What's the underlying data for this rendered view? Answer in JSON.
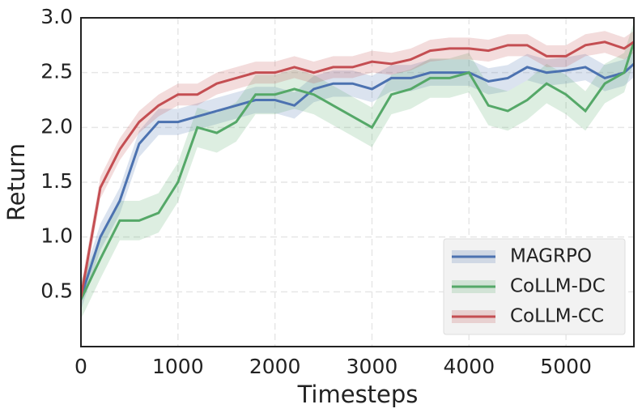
{
  "chart_data": {
    "type": "line",
    "x_label": "Timesteps",
    "y_label": "Return",
    "x": [
      0,
      200,
      400,
      600,
      800,
      1000,
      1200,
      1400,
      1600,
      1800,
      2000,
      2200,
      2400,
      2600,
      2800,
      3000,
      3200,
      3400,
      3600,
      3800,
      4000,
      4200,
      4400,
      4600,
      4800,
      5000,
      5200,
      5400,
      5600,
      5700
    ],
    "series": [
      {
        "name": "MAGRPO",
        "color": "#4c72b0",
        "values": [
          0.45,
          1.0,
          1.33,
          1.85,
          2.05,
          2.05,
          2.1,
          2.15,
          2.2,
          2.25,
          2.25,
          2.2,
          2.35,
          2.4,
          2.4,
          2.35,
          2.45,
          2.45,
          2.5,
          2.5,
          2.5,
          2.42,
          2.45,
          2.55,
          2.5,
          2.52,
          2.55,
          2.45,
          2.5,
          2.58
        ],
        "lower": [
          0.33,
          0.88,
          1.21,
          1.73,
          1.93,
          1.93,
          1.98,
          2.03,
          2.08,
          2.13,
          2.13,
          2.08,
          2.23,
          2.28,
          2.28,
          2.23,
          2.33,
          2.33,
          2.38,
          2.38,
          2.38,
          2.3,
          2.33,
          2.43,
          2.38,
          2.4,
          2.43,
          2.33,
          2.38,
          2.46
        ],
        "upper": [
          0.57,
          1.12,
          1.45,
          1.97,
          2.17,
          2.17,
          2.22,
          2.27,
          2.32,
          2.37,
          2.37,
          2.32,
          2.47,
          2.52,
          2.52,
          2.47,
          2.57,
          2.57,
          2.62,
          2.62,
          2.62,
          2.54,
          2.57,
          2.67,
          2.62,
          2.64,
          2.67,
          2.57,
          2.62,
          2.7
        ]
      },
      {
        "name": "CoLLM-DC",
        "color": "#55a868",
        "values": [
          0.43,
          0.8,
          1.15,
          1.15,
          1.22,
          1.5,
          2.0,
          1.95,
          2.05,
          2.3,
          2.3,
          2.35,
          2.3,
          2.2,
          2.1,
          2.0,
          2.3,
          2.35,
          2.45,
          2.45,
          2.5,
          2.2,
          2.15,
          2.25,
          2.4,
          2.3,
          2.15,
          2.4,
          2.5,
          2.78
        ],
        "lower": [
          0.25,
          0.62,
          0.97,
          0.97,
          1.04,
          1.32,
          1.82,
          1.77,
          1.87,
          2.12,
          2.12,
          2.17,
          2.12,
          2.02,
          1.92,
          1.82,
          2.12,
          2.17,
          2.27,
          2.27,
          2.32,
          2.02,
          1.97,
          2.07,
          2.22,
          2.12,
          1.97,
          2.22,
          2.32,
          2.6
        ],
        "upper": [
          0.61,
          0.98,
          1.33,
          1.33,
          1.4,
          1.68,
          2.18,
          2.13,
          2.23,
          2.48,
          2.48,
          2.53,
          2.48,
          2.38,
          2.28,
          2.18,
          2.48,
          2.53,
          2.63,
          2.63,
          2.68,
          2.38,
          2.33,
          2.43,
          2.58,
          2.48,
          2.33,
          2.58,
          2.68,
          2.96
        ]
      },
      {
        "name": "CoLLM-CC",
        "color": "#c44e52",
        "values": [
          0.45,
          1.45,
          1.8,
          2.05,
          2.2,
          2.3,
          2.3,
          2.4,
          2.45,
          2.5,
          2.5,
          2.55,
          2.5,
          2.55,
          2.55,
          2.6,
          2.58,
          2.62,
          2.7,
          2.72,
          2.72,
          2.7,
          2.75,
          2.75,
          2.65,
          2.65,
          2.75,
          2.78,
          2.72,
          2.78
        ],
        "lower": [
          0.35,
          1.35,
          1.7,
          1.95,
          2.1,
          2.2,
          2.2,
          2.3,
          2.35,
          2.4,
          2.4,
          2.45,
          2.4,
          2.45,
          2.45,
          2.5,
          2.48,
          2.52,
          2.6,
          2.62,
          2.62,
          2.6,
          2.65,
          2.65,
          2.55,
          2.55,
          2.65,
          2.68,
          2.62,
          2.68
        ],
        "upper": [
          0.55,
          1.55,
          1.9,
          2.15,
          2.3,
          2.4,
          2.4,
          2.5,
          2.55,
          2.6,
          2.6,
          2.65,
          2.6,
          2.65,
          2.65,
          2.7,
          2.68,
          2.72,
          2.8,
          2.82,
          2.82,
          2.8,
          2.85,
          2.85,
          2.75,
          2.75,
          2.85,
          2.88,
          2.82,
          2.88
        ]
      }
    ],
    "xlim": [
      0,
      5700
    ],
    "xticks": [
      0,
      1000,
      2000,
      3000,
      4000,
      5000
    ],
    "ylim": [
      0,
      3.0
    ],
    "yticks": [
      0.5,
      {
        "value": 1,
        "label": "1.0"
      },
      1.5,
      {
        "value": 2,
        "label": "2.0"
      },
      2.5,
      {
        "value": 3,
        "label": "3.0"
      }
    ],
    "grid": true,
    "legend": "lower right"
  }
}
